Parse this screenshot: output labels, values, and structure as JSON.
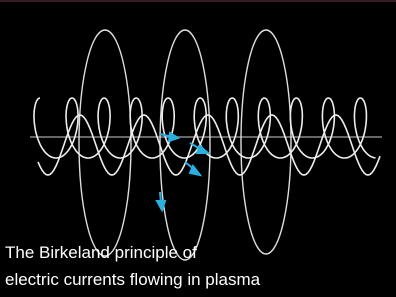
{
  "caption": {
    "lines": [
      "The Birkeland principle of",
      "electric currents flowing in plasma"
    ]
  }
}
